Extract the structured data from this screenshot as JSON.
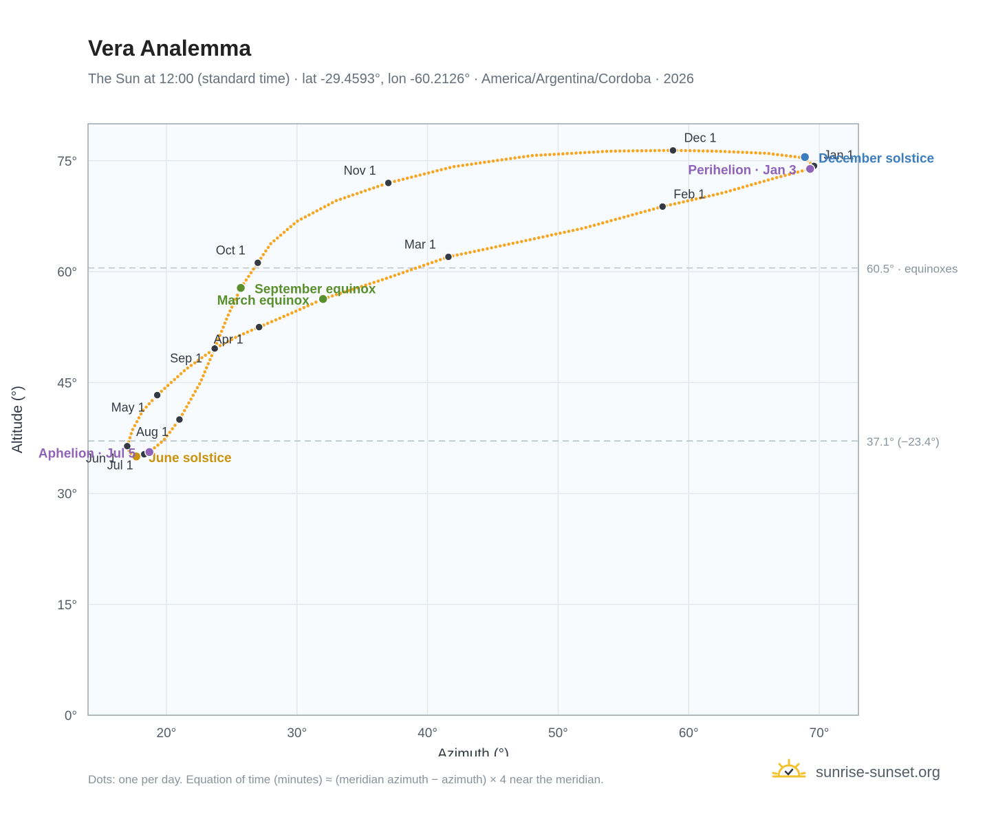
{
  "header": {
    "title": "Vera Analemma",
    "subtitle": "The Sun at 12:00 (standard time) · lat -29.4593°, lon -60.2126° · America/Argentina/Cordoba · 2026"
  },
  "footer": {
    "note": "Dots: one per day. Equation of time (minutes) ≈ (meridian azimuth − azimuth) × 4 near the meridian.",
    "brand": "sunrise-sunset.org",
    "logo_icon": "sun-logo-icon"
  },
  "colors": {
    "curve": "#f5a623",
    "month_marker": "#333a44",
    "equinox": "#5a8f2e",
    "june_solstice": "#c9930e",
    "december_solstice": "#3b7dbd",
    "apsis": "#8e63b8",
    "reference_line": "#b9c2c9",
    "plot_bg": "#f8fbfd",
    "grid": "#e3e8ed"
  },
  "chart_data": {
    "type": "scatter",
    "xlabel": "Azimuth (°)",
    "ylabel": "Altitude (°)",
    "xlim": [
      14,
      73
    ],
    "ylim": [
      0,
      80
    ],
    "x_ticks": [
      20,
      30,
      40,
      50,
      60,
      70
    ],
    "y_ticks": [
      0,
      15,
      30,
      45,
      60,
      75
    ],
    "x_tick_labels": [
      "20°",
      "30°",
      "40°",
      "50°",
      "60°",
      "70°"
    ],
    "y_tick_labels": [
      "0°",
      "15°",
      "30°",
      "45°",
      "60°",
      "75°"
    ],
    "grid": true,
    "reference_lines": [
      {
        "y": 60.5,
        "label": "60.5° · equinoxes"
      },
      {
        "y": 37.1,
        "label": "37.1° (−23.4°)"
      }
    ],
    "daily_path": [
      [
        69.6,
        74.3
      ],
      [
        68.8,
        75.4
      ],
      [
        66.0,
        76.0
      ],
      [
        62.0,
        76.3
      ],
      [
        58.8,
        76.4
      ],
      [
        54.0,
        76.3
      ],
      [
        48.0,
        75.7
      ],
      [
        42.0,
        74.2
      ],
      [
        37.0,
        72.0
      ],
      [
        33.0,
        69.6
      ],
      [
        30.0,
        66.8
      ],
      [
        28.0,
        63.8
      ],
      [
        27.0,
        61.2
      ],
      [
        25.7,
        57.8
      ],
      [
        24.7,
        54.0
      ],
      [
        23.7,
        49.6
      ],
      [
        22.6,
        45.0
      ],
      [
        21.0,
        40.0
      ],
      [
        19.8,
        37.2
      ],
      [
        18.7,
        35.6
      ],
      [
        18.3,
        35.3
      ],
      [
        17.7,
        35.0
      ],
      [
        17.2,
        35.5
      ],
      [
        17.0,
        36.4
      ],
      [
        17.4,
        38.6
      ],
      [
        18.2,
        41.2
      ],
      [
        19.3,
        43.3
      ],
      [
        21.5,
        46.8
      ],
      [
        23.7,
        49.6
      ],
      [
        25.4,
        51.2
      ],
      [
        27.1,
        52.5
      ],
      [
        29.6,
        54.4
      ],
      [
        32.0,
        56.3
      ],
      [
        36.7,
        59.0
      ],
      [
        41.6,
        62.0
      ],
      [
        47.0,
        64.0
      ],
      [
        52.0,
        65.9
      ],
      [
        58.0,
        68.8
      ],
      [
        62.5,
        70.6
      ],
      [
        66.5,
        72.6
      ],
      [
        69.3,
        73.9
      ],
      [
        69.6,
        74.3
      ]
    ],
    "month_markers": [
      {
        "label": "Jan 1",
        "x": 69.6,
        "y": 74.3
      },
      {
        "label": "Feb 1",
        "x": 58.0,
        "y": 68.8
      },
      {
        "label": "Mar 1",
        "x": 41.6,
        "y": 62.0
      },
      {
        "label": "Apr 1",
        "x": 27.1,
        "y": 52.5
      },
      {
        "label": "May 1",
        "x": 19.3,
        "y": 43.3
      },
      {
        "label": "Jun 1",
        "x": 17.0,
        "y": 36.4
      },
      {
        "label": "Jul 1",
        "x": 18.3,
        "y": 35.3
      },
      {
        "label": "Aug 1",
        "x": 21.0,
        "y": 40.0
      },
      {
        "label": "Sep 1",
        "x": 23.7,
        "y": 49.6
      },
      {
        "label": "Oct 1",
        "x": 27.0,
        "y": 61.2
      },
      {
        "label": "Nov 1",
        "x": 37.0,
        "y": 72.0
      },
      {
        "label": "Dec 1",
        "x": 58.8,
        "y": 76.4
      }
    ],
    "events": [
      {
        "label": "March equinox",
        "x": 32.0,
        "y": 56.3,
        "color": "#5a8f2e"
      },
      {
        "label": "September equinox",
        "x": 25.7,
        "y": 57.8,
        "color": "#5a8f2e"
      },
      {
        "label": "June solstice",
        "x": 17.7,
        "y": 35.0,
        "color": "#c9930e"
      },
      {
        "label": "December solstice",
        "x": 68.9,
        "y": 75.5,
        "color": "#3b7dbd"
      },
      {
        "label": "Aphelion · Jul 5",
        "x": 18.7,
        "y": 35.6,
        "color": "#8e63b8"
      },
      {
        "label": "Perihelion · Jan 3",
        "x": 69.3,
        "y": 73.9,
        "color": "#8e63b8"
      }
    ]
  }
}
